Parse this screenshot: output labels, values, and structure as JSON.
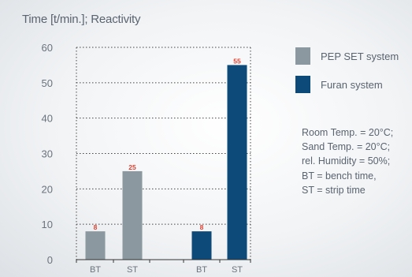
{
  "chart_data": {
    "type": "bar",
    "title": "Time [t/min.]; Reactivity",
    "xlabel": "",
    "ylabel": "",
    "ylim": [
      0,
      60
    ],
    "yticks": [
      0,
      10,
      20,
      30,
      40,
      50,
      60
    ],
    "grid": "horizontal dotted",
    "groups": [
      {
        "series": "PEP SET system",
        "color": "#8b989f",
        "bars": [
          {
            "category": "BT",
            "value": 8,
            "label": "8"
          },
          {
            "category": "ST",
            "value": 25,
            "label": "25"
          }
        ]
      },
      {
        "series": "Furan system",
        "color": "#0e4a79",
        "bars": [
          {
            "category": "BT",
            "value": 8,
            "label": "8"
          },
          {
            "category": "ST",
            "value": 55,
            "label": "55"
          }
        ]
      }
    ],
    "legend": {
      "placement": "right",
      "entries": [
        {
          "name": "PEP SET system",
          "color": "#8b989f"
        },
        {
          "name": "Furan system",
          "color": "#0e4a79"
        }
      ]
    },
    "notes": [
      "Room Temp.  = 20°C;",
      "Sand Temp.  = 20°C;",
      "rel. Humidity  = 50%;",
      "BT = bench time,",
      "ST = strip time"
    ]
  }
}
